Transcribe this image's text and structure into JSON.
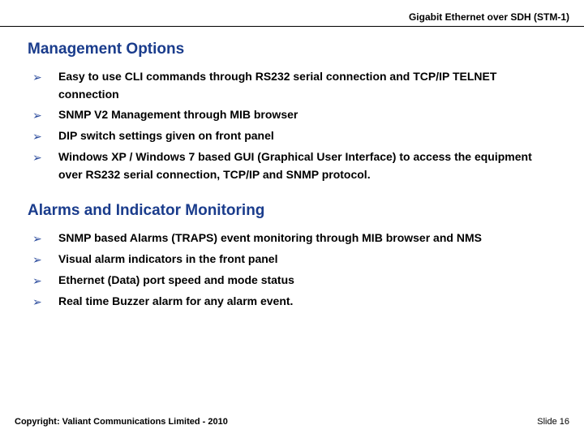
{
  "header": {
    "title": "Gigabit Ethernet over SDH (STM-1)"
  },
  "sections": [
    {
      "title": "Management Options",
      "title_color": "#1a3c8c",
      "bullets": [
        "Easy to use CLI commands through RS232 serial connection and TCP/IP TELNET connection",
        "SNMP V2 Management through MIB browser",
        "DIP switch settings given on front panel",
        "Windows XP / Windows 7 based GUI (Graphical User Interface) to access the equipment over RS232 serial connection, TCP/IP and SNMP protocol."
      ]
    },
    {
      "title": "Alarms and Indicator Monitoring",
      "title_color": "#1a3c8c",
      "bullets": [
        "SNMP based Alarms (TRAPS) event monitoring through MIB browser and NMS",
        "Visual alarm indicators in the front panel",
        "Ethernet (Data) port speed and mode status",
        "Real time Buzzer alarm for any alarm event."
      ]
    }
  ],
  "bullet_marker": "➢",
  "bullet_marker_color": "#2a4a9c",
  "footer": {
    "left": "Copyright: Valiant Communications Limited - 2010",
    "right": "Slide 16"
  },
  "colors": {
    "background": "#ffffff",
    "text": "#000000",
    "rule": "#000000"
  },
  "typography": {
    "header_fontsize": 12,
    "section_title_fontsize": 19,
    "bullet_fontsize": 14,
    "footer_fontsize": 11,
    "font_family": "Arial"
  }
}
